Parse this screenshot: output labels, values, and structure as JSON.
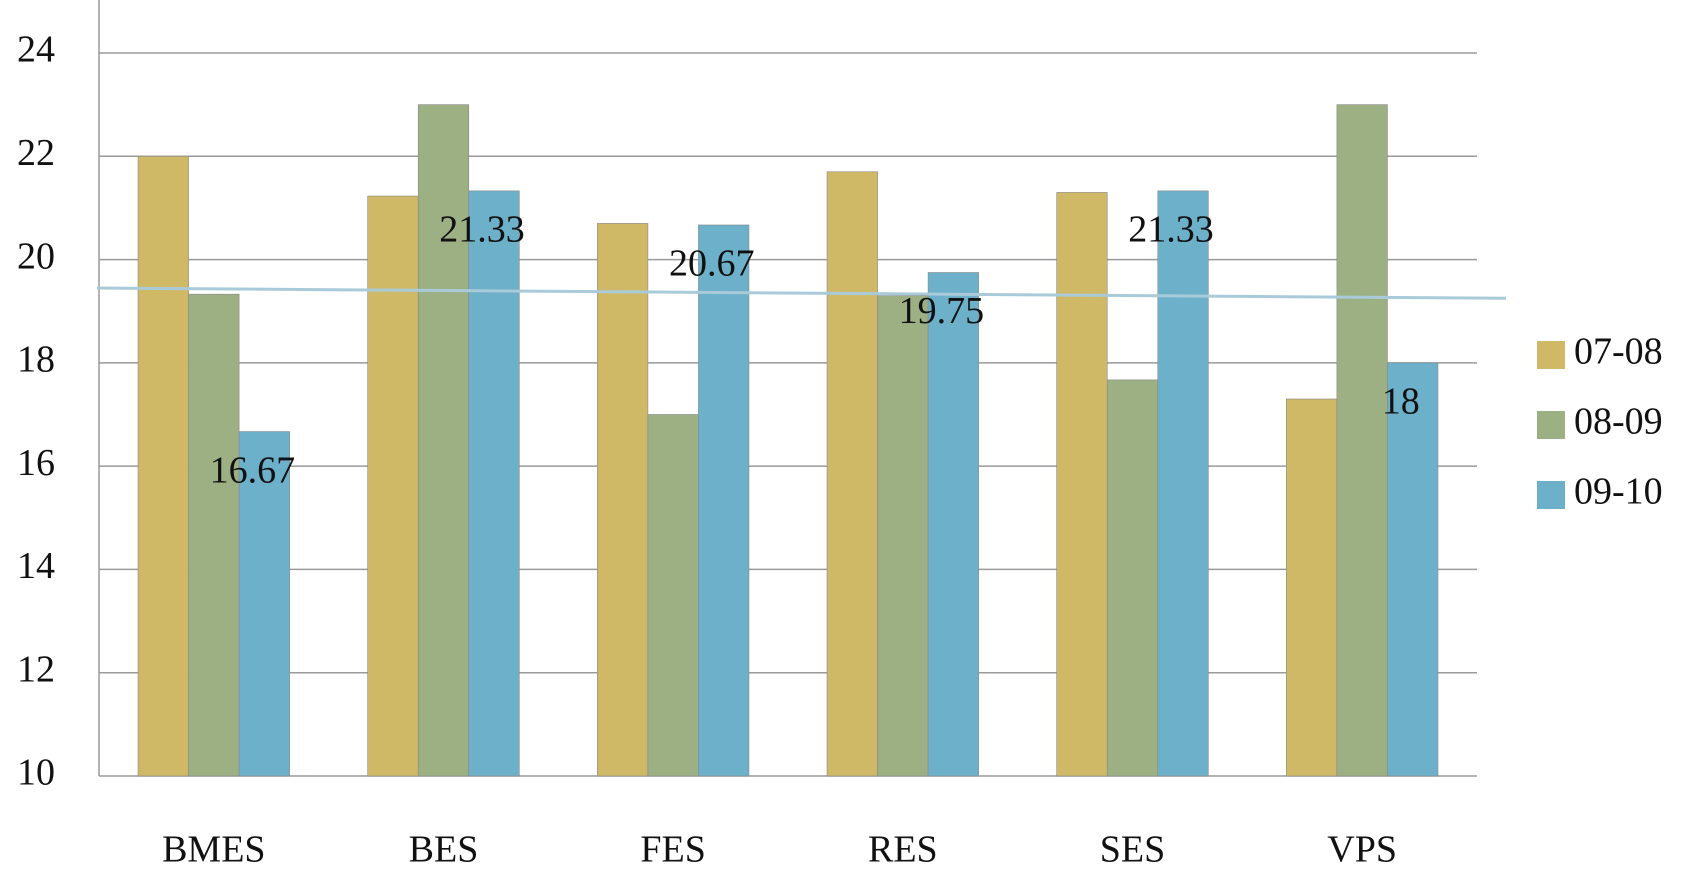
{
  "chart_data": {
    "type": "bar",
    "categories": [
      "BMES",
      "BES",
      "FES",
      "RES",
      "SES",
      "VPS"
    ],
    "series": [
      {
        "name": "07-08",
        "color": "#cfb966",
        "values": [
          22,
          21.23,
          20.7,
          21.7,
          21.3,
          17.3
        ]
      },
      {
        "name": "08-09",
        "color": "#9db083",
        "values": [
          19.33,
          23,
          17,
          19.3,
          17.67,
          23
        ]
      },
      {
        "name": "09-10",
        "color": "#6cb0ca",
        "values": [
          16.67,
          21.33,
          20.67,
          19.75,
          21.33,
          18
        ],
        "data_labels": true
      }
    ],
    "ylim": [
      10,
      24
    ],
    "yticks": [
      10,
      12,
      14,
      16,
      18,
      20,
      22,
      24
    ],
    "grid": true,
    "trendline": {
      "start": 19.45,
      "end": 19.25,
      "color": "#a9cbd9"
    },
    "legend": "right"
  }
}
